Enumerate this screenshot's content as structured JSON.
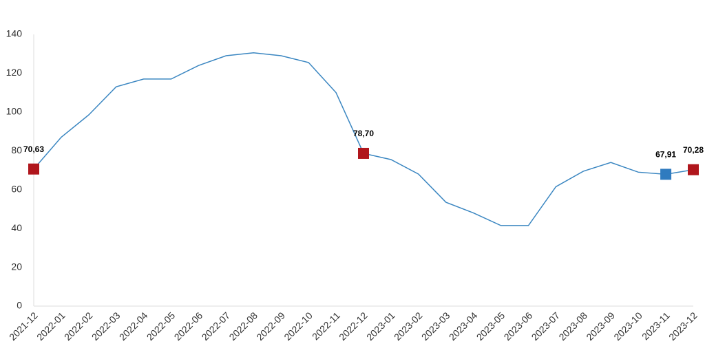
{
  "chart_data": {
    "type": "line",
    "categories": [
      "2021-12",
      "2022-01",
      "2022-02",
      "2022-03",
      "2022-04",
      "2022-05",
      "2022-06",
      "2022-07",
      "2022-08",
      "2022-09",
      "2022-10",
      "2022-11",
      "2022-12",
      "2023-01",
      "2023-02",
      "2023-03",
      "2023-04",
      "2023-05",
      "2023-06",
      "2023-07",
      "2023-08",
      "2023-09",
      "2023-10",
      "2023-11",
      "2023-12"
    ],
    "values": [
      70.63,
      87,
      98.5,
      113,
      117,
      117,
      124,
      129,
      130.5,
      129,
      125.5,
      110,
      78.7,
      75.5,
      68,
      53.5,
      48,
      41.5,
      41.5,
      61.5,
      69.5,
      74,
      69,
      67.91,
      70.28
    ],
    "value_labels": [
      "70,63",
      null,
      null,
      null,
      null,
      null,
      null,
      null,
      null,
      null,
      null,
      null,
      "78,70",
      null,
      null,
      null,
      null,
      null,
      null,
      null,
      null,
      null,
      null,
      "67,91",
      "70,28"
    ],
    "marker_colors": [
      "#b0161c",
      null,
      null,
      null,
      null,
      null,
      null,
      null,
      null,
      null,
      null,
      null,
      "#b0161c",
      null,
      null,
      null,
      null,
      null,
      null,
      null,
      null,
      null,
      null,
      "#2f7bbf",
      "#b0161c"
    ],
    "color": "#3a86c1",
    "ylim": [
      0,
      140
    ],
    "yticks": [
      0,
      20,
      40,
      60,
      80,
      100,
      120,
      140
    ],
    "grid": false
  }
}
